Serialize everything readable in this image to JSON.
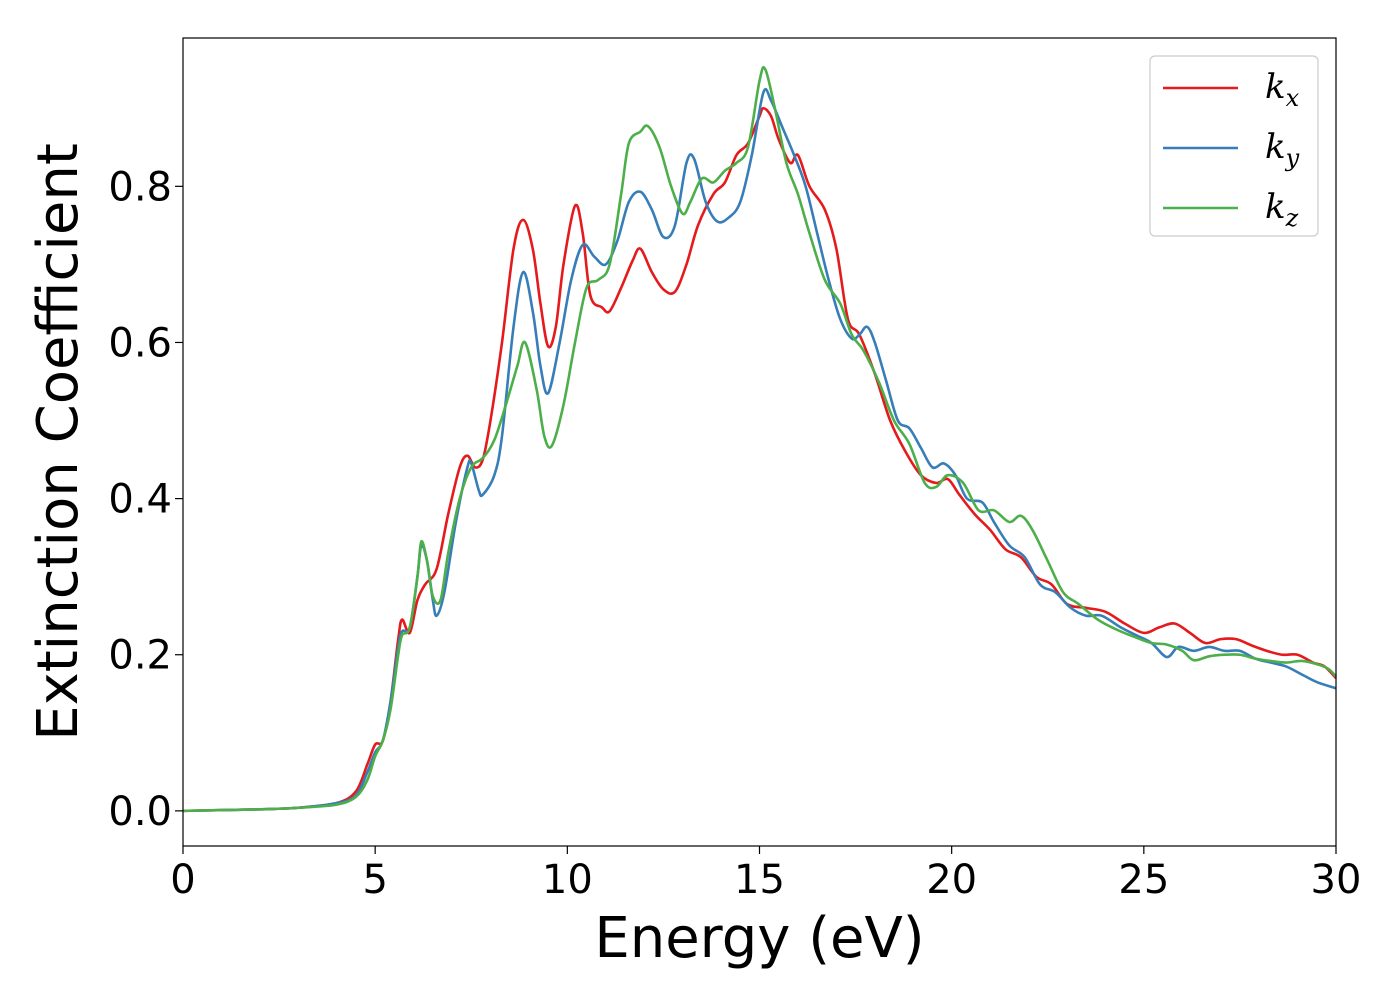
{
  "chart_data": {
    "type": "line",
    "xlabel": "Energy (eV)",
    "ylabel": "Extinction Coefficient",
    "xlim": [
      0,
      30
    ],
    "ylim": [
      -0.045,
      0.99
    ],
    "xticks": [
      0,
      5,
      10,
      15,
      20,
      25,
      30
    ],
    "xtick_labels": [
      "0",
      "5",
      "10",
      "15",
      "20",
      "25",
      "30"
    ],
    "yticks": [
      0.0,
      0.2,
      0.4,
      0.6,
      0.8
    ],
    "ytick_labels": [
      "0.0",
      "0.2",
      "0.4",
      "0.6",
      "0.8"
    ],
    "grid": false,
    "legend": {
      "position": "top-right"
    },
    "series": [
      {
        "name": "k",
        "subscript": "x",
        "color": "#e41a1c",
        "points": [
          [
            0,
            0
          ],
          [
            2,
            0.002
          ],
          [
            3,
            0.004
          ],
          [
            4,
            0.01
          ],
          [
            4.5,
            0.025
          ],
          [
            4.8,
            0.06
          ],
          [
            5.0,
            0.085
          ],
          [
            5.2,
            0.09
          ],
          [
            5.4,
            0.14
          ],
          [
            5.6,
            0.22
          ],
          [
            5.7,
            0.245
          ],
          [
            5.9,
            0.228
          ],
          [
            6.1,
            0.27
          ],
          [
            6.3,
            0.29
          ],
          [
            6.6,
            0.31
          ],
          [
            6.9,
            0.38
          ],
          [
            7.2,
            0.44
          ],
          [
            7.4,
            0.455
          ],
          [
            7.6,
            0.44
          ],
          [
            7.8,
            0.45
          ],
          [
            8.0,
            0.5
          ],
          [
            8.3,
            0.6
          ],
          [
            8.6,
            0.72
          ],
          [
            8.85,
            0.757
          ],
          [
            9.1,
            0.72
          ],
          [
            9.3,
            0.65
          ],
          [
            9.5,
            0.595
          ],
          [
            9.7,
            0.62
          ],
          [
            9.9,
            0.7
          ],
          [
            10.2,
            0.775
          ],
          [
            10.4,
            0.74
          ],
          [
            10.6,
            0.66
          ],
          [
            10.9,
            0.645
          ],
          [
            11.1,
            0.64
          ],
          [
            11.4,
            0.67
          ],
          [
            11.7,
            0.705
          ],
          [
            11.9,
            0.72
          ],
          [
            12.2,
            0.69
          ],
          [
            12.5,
            0.668
          ],
          [
            12.8,
            0.665
          ],
          [
            13.1,
            0.7
          ],
          [
            13.4,
            0.75
          ],
          [
            13.8,
            0.79
          ],
          [
            14.1,
            0.805
          ],
          [
            14.4,
            0.84
          ],
          [
            14.7,
            0.855
          ],
          [
            15.0,
            0.89
          ],
          [
            15.1,
            0.9
          ],
          [
            15.3,
            0.89
          ],
          [
            15.5,
            0.86
          ],
          [
            15.8,
            0.83
          ],
          [
            16.0,
            0.84
          ],
          [
            16.3,
            0.8
          ],
          [
            16.7,
            0.77
          ],
          [
            17.0,
            0.72
          ],
          [
            17.3,
            0.63
          ],
          [
            17.6,
            0.61
          ],
          [
            18.0,
            0.56
          ],
          [
            18.4,
            0.5
          ],
          [
            18.8,
            0.46
          ],
          [
            19.2,
            0.43
          ],
          [
            19.6,
            0.42
          ],
          [
            19.9,
            0.425
          ],
          [
            20.2,
            0.405
          ],
          [
            20.6,
            0.38
          ],
          [
            21.0,
            0.36
          ],
          [
            21.4,
            0.335
          ],
          [
            21.8,
            0.325
          ],
          [
            22.2,
            0.3
          ],
          [
            22.6,
            0.29
          ],
          [
            23.0,
            0.265
          ],
          [
            23.5,
            0.26
          ],
          [
            24.0,
            0.255
          ],
          [
            24.5,
            0.24
          ],
          [
            25.0,
            0.228
          ],
          [
            25.4,
            0.235
          ],
          [
            25.8,
            0.24
          ],
          [
            26.2,
            0.228
          ],
          [
            26.6,
            0.215
          ],
          [
            27.0,
            0.22
          ],
          [
            27.4,
            0.22
          ],
          [
            27.8,
            0.212
          ],
          [
            28.2,
            0.205
          ],
          [
            28.6,
            0.2
          ],
          [
            29.0,
            0.2
          ],
          [
            29.4,
            0.19
          ],
          [
            29.7,
            0.185
          ],
          [
            30,
            0.17
          ]
        ]
      },
      {
        "name": "k",
        "subscript": "y",
        "color": "#377eb8",
        "points": [
          [
            0,
            0
          ],
          [
            2,
            0.002
          ],
          [
            3,
            0.004
          ],
          [
            4,
            0.01
          ],
          [
            4.5,
            0.02
          ],
          [
            4.8,
            0.05
          ],
          [
            5.0,
            0.075
          ],
          [
            5.2,
            0.09
          ],
          [
            5.4,
            0.14
          ],
          [
            5.6,
            0.21
          ],
          [
            5.7,
            0.23
          ],
          [
            5.9,
            0.235
          ],
          [
            6.1,
            0.3
          ],
          [
            6.2,
            0.34
          ],
          [
            6.35,
            0.32
          ],
          [
            6.5,
            0.27
          ],
          [
            6.6,
            0.25
          ],
          [
            6.8,
            0.28
          ],
          [
            7.1,
            0.37
          ],
          [
            7.4,
            0.44
          ],
          [
            7.5,
            0.445
          ],
          [
            7.7,
            0.41
          ],
          [
            7.8,
            0.405
          ],
          [
            8.1,
            0.43
          ],
          [
            8.3,
            0.48
          ],
          [
            8.6,
            0.62
          ],
          [
            8.85,
            0.69
          ],
          [
            9.1,
            0.64
          ],
          [
            9.3,
            0.57
          ],
          [
            9.5,
            0.535
          ],
          [
            9.8,
            0.6
          ],
          [
            10.1,
            0.68
          ],
          [
            10.4,
            0.725
          ],
          [
            10.7,
            0.71
          ],
          [
            11.0,
            0.7
          ],
          [
            11.3,
            0.73
          ],
          [
            11.6,
            0.78
          ],
          [
            11.9,
            0.793
          ],
          [
            12.2,
            0.77
          ],
          [
            12.5,
            0.735
          ],
          [
            12.8,
            0.75
          ],
          [
            13.1,
            0.83
          ],
          [
            13.3,
            0.835
          ],
          [
            13.6,
            0.78
          ],
          [
            13.9,
            0.755
          ],
          [
            14.2,
            0.76
          ],
          [
            14.5,
            0.78
          ],
          [
            14.8,
            0.84
          ],
          [
            15.1,
            0.92
          ],
          [
            15.3,
            0.91
          ],
          [
            15.6,
            0.875
          ],
          [
            15.9,
            0.84
          ],
          [
            16.2,
            0.8
          ],
          [
            16.5,
            0.74
          ],
          [
            16.8,
            0.68
          ],
          [
            17.1,
            0.63
          ],
          [
            17.4,
            0.605
          ],
          [
            17.6,
            0.61
          ],
          [
            17.8,
            0.62
          ],
          [
            18.0,
            0.6
          ],
          [
            18.3,
            0.55
          ],
          [
            18.6,
            0.5
          ],
          [
            18.9,
            0.49
          ],
          [
            19.2,
            0.465
          ],
          [
            19.5,
            0.44
          ],
          [
            19.8,
            0.445
          ],
          [
            20.1,
            0.43
          ],
          [
            20.4,
            0.4
          ],
          [
            20.8,
            0.395
          ],
          [
            21.1,
            0.37
          ],
          [
            21.5,
            0.34
          ],
          [
            21.9,
            0.325
          ],
          [
            22.3,
            0.29
          ],
          [
            22.7,
            0.28
          ],
          [
            23.1,
            0.26
          ],
          [
            23.5,
            0.25
          ],
          [
            23.9,
            0.25
          ],
          [
            24.4,
            0.235
          ],
          [
            24.8,
            0.225
          ],
          [
            25.2,
            0.215
          ],
          [
            25.6,
            0.197
          ],
          [
            25.9,
            0.21
          ],
          [
            26.3,
            0.205
          ],
          [
            26.7,
            0.21
          ],
          [
            27.1,
            0.205
          ],
          [
            27.5,
            0.205
          ],
          [
            27.9,
            0.195
          ],
          [
            28.3,
            0.19
          ],
          [
            28.7,
            0.185
          ],
          [
            29.1,
            0.175
          ],
          [
            29.5,
            0.165
          ],
          [
            30,
            0.157
          ]
        ]
      },
      {
        "name": "k",
        "subscript": "z",
        "color": "#4daf4a",
        "points": [
          [
            0,
            0
          ],
          [
            2,
            0.002
          ],
          [
            3,
            0.004
          ],
          [
            4,
            0.008
          ],
          [
            4.5,
            0.018
          ],
          [
            4.8,
            0.04
          ],
          [
            5.0,
            0.07
          ],
          [
            5.2,
            0.09
          ],
          [
            5.4,
            0.13
          ],
          [
            5.6,
            0.2
          ],
          [
            5.7,
            0.225
          ],
          [
            5.9,
            0.235
          ],
          [
            6.1,
            0.3
          ],
          [
            6.2,
            0.345
          ],
          [
            6.35,
            0.32
          ],
          [
            6.5,
            0.275
          ],
          [
            6.7,
            0.27
          ],
          [
            6.9,
            0.33
          ],
          [
            7.2,
            0.4
          ],
          [
            7.5,
            0.44
          ],
          [
            7.8,
            0.452
          ],
          [
            8.1,
            0.475
          ],
          [
            8.4,
            0.52
          ],
          [
            8.7,
            0.57
          ],
          [
            8.9,
            0.6
          ],
          [
            9.2,
            0.54
          ],
          [
            9.4,
            0.48
          ],
          [
            9.6,
            0.468
          ],
          [
            9.9,
            0.52
          ],
          [
            10.2,
            0.6
          ],
          [
            10.5,
            0.67
          ],
          [
            10.8,
            0.68
          ],
          [
            11.1,
            0.7
          ],
          [
            11.4,
            0.79
          ],
          [
            11.6,
            0.855
          ],
          [
            11.9,
            0.87
          ],
          [
            12.1,
            0.877
          ],
          [
            12.4,
            0.85
          ],
          [
            12.7,
            0.8
          ],
          [
            13.0,
            0.765
          ],
          [
            13.2,
            0.78
          ],
          [
            13.5,
            0.81
          ],
          [
            13.8,
            0.805
          ],
          [
            14.1,
            0.82
          ],
          [
            14.4,
            0.83
          ],
          [
            14.7,
            0.85
          ],
          [
            15.0,
            0.935
          ],
          [
            15.15,
            0.95
          ],
          [
            15.4,
            0.9
          ],
          [
            15.7,
            0.83
          ],
          [
            16.0,
            0.79
          ],
          [
            16.3,
            0.74
          ],
          [
            16.7,
            0.68
          ],
          [
            17.1,
            0.65
          ],
          [
            17.4,
            0.61
          ],
          [
            17.7,
            0.59
          ],
          [
            18.1,
            0.55
          ],
          [
            18.5,
            0.5
          ],
          [
            18.9,
            0.47
          ],
          [
            19.3,
            0.42
          ],
          [
            19.6,
            0.415
          ],
          [
            19.9,
            0.43
          ],
          [
            20.3,
            0.42
          ],
          [
            20.7,
            0.385
          ],
          [
            21.1,
            0.385
          ],
          [
            21.5,
            0.37
          ],
          [
            21.8,
            0.378
          ],
          [
            22.1,
            0.36
          ],
          [
            22.5,
            0.32
          ],
          [
            22.9,
            0.28
          ],
          [
            23.3,
            0.265
          ],
          [
            23.8,
            0.245
          ],
          [
            24.3,
            0.232
          ],
          [
            24.8,
            0.222
          ],
          [
            25.2,
            0.215
          ],
          [
            25.6,
            0.213
          ],
          [
            26.0,
            0.205
          ],
          [
            26.3,
            0.193
          ],
          [
            26.7,
            0.198
          ],
          [
            27.1,
            0.2
          ],
          [
            27.5,
            0.2
          ],
          [
            27.9,
            0.195
          ],
          [
            28.3,
            0.192
          ],
          [
            28.7,
            0.19
          ],
          [
            29.1,
            0.192
          ],
          [
            29.5,
            0.188
          ],
          [
            29.8,
            0.182
          ],
          [
            30,
            0.172
          ]
        ]
      }
    ]
  }
}
